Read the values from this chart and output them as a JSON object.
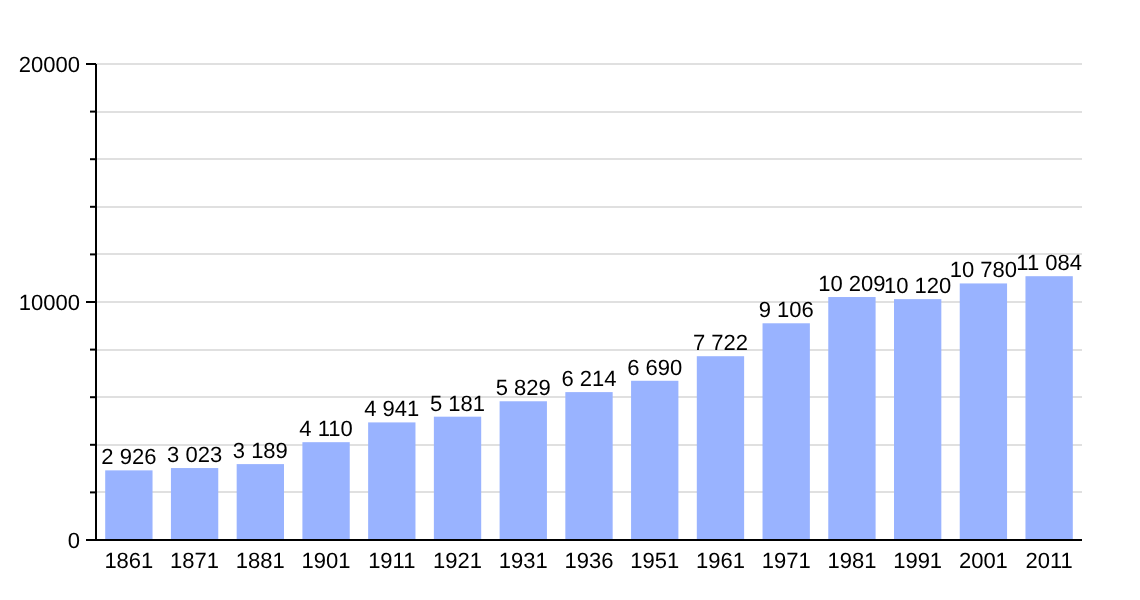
{
  "chart_data": {
    "type": "bar",
    "categories": [
      "1861",
      "1871",
      "1881",
      "1901",
      "1911",
      "1921",
      "1931",
      "1936",
      "1951",
      "1961",
      "1971",
      "1981",
      "1991",
      "2001",
      "2011"
    ],
    "values": [
      2926,
      3023,
      3189,
      4110,
      4941,
      5181,
      5829,
      6214,
      6690,
      7722,
      9106,
      10209,
      10120,
      10780,
      11084
    ],
    "value_labels": [
      "2 926",
      "3 023",
      "3 189",
      "4 110",
      "4 941",
      "5 181",
      "5 829",
      "6 214",
      "6 690",
      "7 722",
      "9 106",
      "10 209",
      "10 120",
      "10 780",
      "11 084"
    ],
    "color": "#99b3ff",
    "ylim": [
      0,
      20000
    ],
    "yticks": [
      0,
      {
        "value": 2000,
        "label": null
      },
      {
        "value": 4000,
        "label": null
      },
      {
        "value": 6000,
        "label": null
      },
      {
        "value": 8000,
        "label": null
      },
      10000,
      {
        "value": 12000,
        "label": null
      },
      {
        "value": 14000,
        "label": null
      },
      {
        "value": 16000,
        "label": null
      },
      {
        "value": 18000,
        "label": null
      },
      20000
    ],
    "grid": true
  }
}
